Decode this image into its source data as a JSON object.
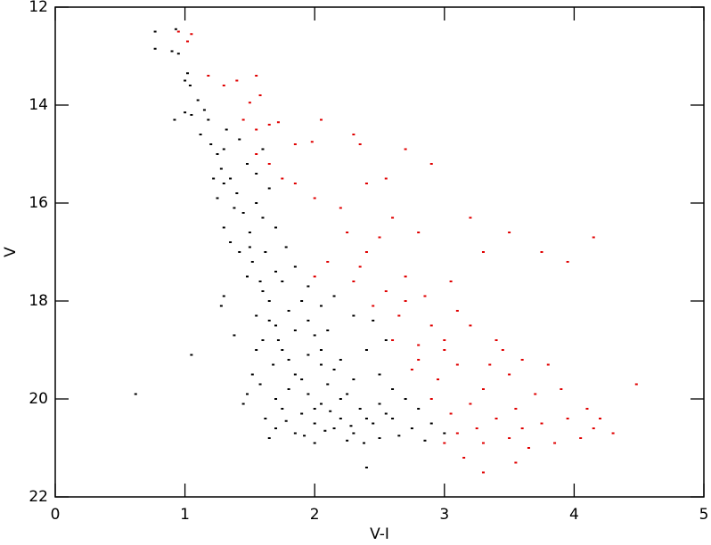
{
  "chart_data": {
    "type": "scatter",
    "xlabel": "V-I",
    "ylabel": "V",
    "xlim": [
      0,
      5
    ],
    "xticks": [
      0,
      1,
      2,
      3,
      4,
      5
    ],
    "ylim": [
      22,
      12
    ],
    "yticks": [
      12,
      14,
      16,
      18,
      20,
      22
    ],
    "series": [
      {
        "color": "#000000",
        "x": [
          0.77,
          0.77,
          0.93,
          0.9,
          0.95,
          1.0,
          1.02,
          1.04,
          0.92,
          1.0,
          1.05,
          1.1,
          1.15,
          1.12,
          1.18,
          1.2,
          1.25,
          1.28,
          1.3,
          1.35,
          1.22,
          1.25,
          1.4,
          1.45,
          1.3,
          1.35,
          1.5,
          1.55,
          1.6,
          1.42,
          1.52,
          1.62,
          1.48,
          1.6,
          1.7,
          1.65,
          1.75,
          1.8,
          1.55,
          1.7,
          1.85,
          1.9,
          1.6,
          1.75,
          1.95,
          2.0,
          1.68,
          1.85,
          2.05,
          2.2,
          1.8,
          1.95,
          2.1,
          2.3,
          1.75,
          1.9,
          2.05,
          2.2,
          2.35,
          2.5,
          1.7,
          1.85,
          2.0,
          2.15,
          2.3,
          2.45,
          2.6,
          2.75,
          1.65,
          2.0,
          2.25,
          2.5,
          1.52,
          1.48,
          1.45,
          0.62,
          1.05,
          2.4,
          1.3,
          1.28,
          1.38,
          1.55,
          2.4,
          2.5,
          2.6,
          2.7,
          2.8,
          2.9,
          2.55,
          2.45,
          2.3,
          2.1,
          1.95,
          2.05,
          2.15,
          2.25,
          2.4,
          2.2,
          2.0,
          1.9,
          1.8,
          1.72,
          1.65,
          1.58,
          1.5,
          1.38,
          1.3,
          1.48,
          1.55,
          1.42,
          1.32,
          1.6,
          1.65,
          1.7,
          1.78,
          1.85,
          1.95,
          2.05,
          2.15,
          1.62,
          1.78,
          1.92,
          2.08,
          2.38,
          2.65,
          2.85,
          1.58,
          1.7,
          2.12,
          2.28,
          2.55,
          3.0
        ],
        "values": [
          12.5,
          12.85,
          12.45,
          12.9,
          12.95,
          13.5,
          13.35,
          13.6,
          14.3,
          14.15,
          14.2,
          13.9,
          14.1,
          14.6,
          14.3,
          14.8,
          15.0,
          15.3,
          14.9,
          15.5,
          15.5,
          15.9,
          15.8,
          16.2,
          16.5,
          16.8,
          16.6,
          16.0,
          16.3,
          17.0,
          17.2,
          17.0,
          17.5,
          17.8,
          17.4,
          18.0,
          17.6,
          18.2,
          18.3,
          18.5,
          18.6,
          18.0,
          18.8,
          19.0,
          19.1,
          18.7,
          19.3,
          19.5,
          19.3,
          19.2,
          19.8,
          19.9,
          19.7,
          19.6,
          20.2,
          20.3,
          20.1,
          20.0,
          20.2,
          20.1,
          20.6,
          20.7,
          20.5,
          20.6,
          20.7,
          20.5,
          20.4,
          20.6,
          20.8,
          20.9,
          20.85,
          20.8,
          19.5,
          19.9,
          20.1,
          19.9,
          19.1,
          21.4,
          17.9,
          18.1,
          18.7,
          19.0,
          19.0,
          19.5,
          19.8,
          20.0,
          20.2,
          20.5,
          18.8,
          18.4,
          18.3,
          18.6,
          18.4,
          19.0,
          19.4,
          19.9,
          20.4,
          20.4,
          20.2,
          19.6,
          19.2,
          18.8,
          18.4,
          17.6,
          16.9,
          16.1,
          15.6,
          15.2,
          15.4,
          14.7,
          14.5,
          14.9,
          15.7,
          16.5,
          16.9,
          17.3,
          17.7,
          18.1,
          17.9,
          20.4,
          20.45,
          20.75,
          20.65,
          20.9,
          20.75,
          20.85,
          19.7,
          20.0,
          20.25,
          20.55,
          20.3,
          20.7
        ]
      },
      {
        "color": "#e00000",
        "x": [
          0.95,
          1.02,
          1.05,
          1.18,
          1.3,
          1.4,
          1.55,
          1.58,
          1.5,
          1.45,
          1.55,
          1.65,
          1.72,
          2.05,
          1.85,
          1.55,
          1.65,
          1.75,
          2.3,
          2.35,
          1.98,
          2.7,
          2.9,
          1.85,
          2.0,
          2.2,
          2.4,
          2.55,
          2.25,
          2.4,
          2.5,
          2.1,
          2.6,
          2.8,
          2.0,
          2.3,
          2.55,
          2.7,
          2.45,
          2.65,
          2.85,
          3.05,
          3.2,
          3.3,
          3.5,
          3.75,
          3.95,
          4.15,
          2.6,
          2.8,
          3.0,
          3.2,
          3.4,
          3.6,
          2.75,
          2.95,
          3.1,
          3.3,
          3.5,
          3.7,
          3.9,
          4.1,
          4.48,
          2.9,
          3.05,
          3.2,
          3.4,
          3.55,
          3.75,
          3.95,
          4.15,
          4.3,
          3.1,
          3.3,
          3.5,
          3.65,
          3.85,
          4.05,
          3.55,
          3.3,
          3.15,
          3.0,
          2.8,
          3.35,
          3.8,
          2.9,
          3.1,
          2.35,
          3.0,
          3.6,
          4.2,
          3.45,
          2.7,
          3.25
        ],
        "values": [
          12.5,
          12.7,
          12.55,
          13.4,
          13.6,
          13.5,
          13.4,
          13.8,
          13.95,
          14.3,
          14.5,
          14.4,
          14.35,
          14.3,
          14.8,
          15.0,
          15.2,
          15.5,
          14.6,
          14.8,
          14.75,
          14.9,
          15.2,
          15.6,
          15.9,
          16.1,
          15.6,
          15.5,
          16.6,
          17.0,
          16.7,
          17.2,
          16.3,
          16.6,
          17.5,
          17.6,
          17.8,
          17.5,
          18.1,
          18.3,
          17.9,
          17.6,
          16.3,
          17.0,
          16.6,
          17.0,
          17.2,
          16.7,
          18.8,
          18.9,
          19.0,
          18.5,
          18.8,
          19.2,
          19.4,
          19.6,
          19.3,
          19.8,
          19.5,
          19.9,
          19.8,
          20.2,
          19.7,
          20.0,
          20.3,
          20.1,
          20.4,
          20.2,
          20.5,
          20.4,
          20.6,
          20.7,
          20.7,
          20.9,
          20.8,
          21.0,
          20.9,
          20.8,
          21.3,
          21.5,
          21.2,
          20.9,
          19.2,
          19.3,
          19.3,
          18.5,
          18.2,
          17.3,
          18.8,
          20.6,
          20.4,
          19.0,
          18.0,
          20.6
        ]
      }
    ]
  }
}
